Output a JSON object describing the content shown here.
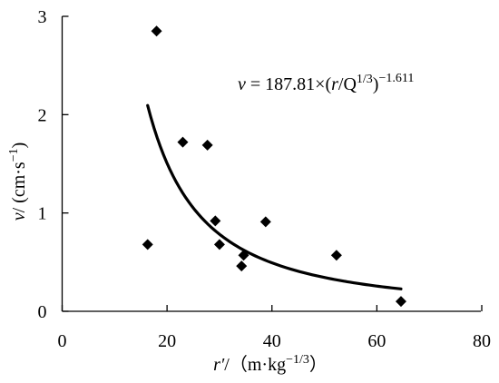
{
  "chart_data": {
    "type": "scatter",
    "x_axis": {
      "title_var": "r′",
      "title_unit": "/（m·kg",
      "title_exp": "−1/3",
      "title_close": "）",
      "min": 0,
      "max": 80,
      "ticks": [
        0,
        20,
        40,
        60,
        80
      ]
    },
    "y_axis": {
      "title_var": "v",
      "title_unit": "/ (cm·s",
      "title_exp": "−1",
      "title_close": ")",
      "min": 0,
      "max": 3,
      "ticks": [
        0,
        1,
        2,
        3
      ]
    },
    "series": [
      {
        "marker": "diamond",
        "points": [
          {
            "x": 16.3,
            "y": 0.68
          },
          {
            "x": 18.0,
            "y": 2.85
          },
          {
            "x": 23.0,
            "y": 1.72
          },
          {
            "x": 27.7,
            "y": 1.69
          },
          {
            "x": 29.2,
            "y": 0.92
          },
          {
            "x": 30.0,
            "y": 0.68
          },
          {
            "x": 34.2,
            "y": 0.46
          },
          {
            "x": 34.6,
            "y": 0.57
          },
          {
            "x": 38.8,
            "y": 0.91
          },
          {
            "x": 52.3,
            "y": 0.57
          },
          {
            "x": 64.6,
            "y": 0.1
          }
        ]
      }
    ],
    "fit": {
      "coef": 187.81,
      "exponent": -1.611,
      "x_range": [
        16.3,
        64.6
      ],
      "equation_var": "v",
      "equation_eq": " = 187.81×(",
      "equation_r": "r",
      "equation_q": "/Q",
      "equation_q_exp": "1/3",
      "equation_close": ")",
      "equation_exp": "−1.611"
    }
  }
}
